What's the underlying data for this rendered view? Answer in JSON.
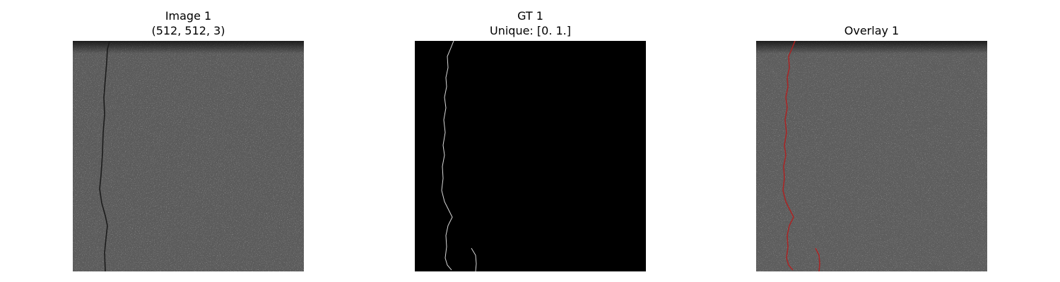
{
  "panels": [
    {
      "title_line1": "Image 1",
      "title_line2": "(512, 512, 3)",
      "kind": "pavement-image"
    },
    {
      "title_line1": "GT 1",
      "title_line2": "Unique: [0. 1.]",
      "kind": "ground-truth-mask"
    },
    {
      "title_line1": "Overlay 1",
      "kind": "overlay-image"
    }
  ],
  "colors": {
    "pavement": "#5a5a5a",
    "mask_background": "#000000",
    "mask_crack": "#d8d8d8",
    "overlay_crack": "#b02020",
    "crack_in_image": "#1c1c1c"
  }
}
